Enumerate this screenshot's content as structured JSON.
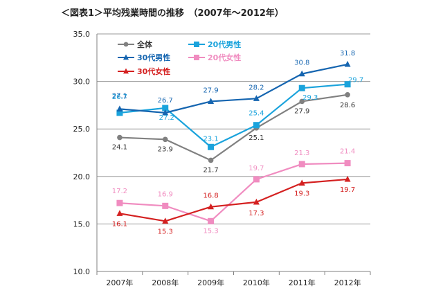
{
  "chart_data": {
    "type": "line",
    "title": "＜図表1＞平均残業時間の推移　（2007年～2012年）",
    "categories": [
      "2007年",
      "2008年",
      "2009年",
      "2010年",
      "2011年",
      "2012年"
    ],
    "ylim": [
      10.0,
      35.0
    ],
    "yticks": [
      "10.0",
      "15.0",
      "20.0",
      "25.0",
      "30.0",
      "35.0"
    ],
    "grid": true,
    "legend_position": "top-left",
    "series": [
      {
        "id": "all",
        "name": "全体",
        "color": "#808080",
        "marker": "circle",
        "values": [
          24.1,
          23.9,
          21.7,
          25.1,
          27.9,
          28.6
        ],
        "labels": [
          "24.1",
          "23.9",
          "21.7",
          "25.1",
          "27.9",
          "28.6"
        ]
      },
      {
        "id": "m20",
        "name": "20代男性",
        "color": "#1aa3dc",
        "marker": "square",
        "values": [
          26.7,
          27.2,
          23.1,
          25.4,
          29.3,
          29.7
        ],
        "labels": [
          "26.7",
          "27.2",
          "23.1",
          "25.4",
          "29.3",
          "29.7"
        ]
      },
      {
        "id": "m30",
        "name": "30代男性",
        "color": "#1565b0",
        "marker": "triangle",
        "values": [
          27.1,
          26.7,
          27.9,
          28.2,
          30.8,
          31.8
        ],
        "labels": [
          "27.1",
          "26.7",
          "27.9",
          "28.2",
          "30.8",
          "31.8"
        ]
      },
      {
        "id": "f20",
        "name": "20代女性",
        "color": "#f08cc0",
        "marker": "square",
        "values": [
          17.2,
          16.9,
          15.3,
          19.7,
          21.3,
          21.4
        ],
        "labels": [
          "17.2",
          "16.9",
          "15.3",
          "19.7",
          "21.3",
          "21.4"
        ]
      },
      {
        "id": "f30",
        "name": "30代女性",
        "color": "#d42020",
        "marker": "triangle",
        "values": [
          16.1,
          15.3,
          16.8,
          17.3,
          19.3,
          19.7
        ],
        "labels": [
          "16.1",
          "15.3",
          "16.8",
          "17.3",
          "19.3",
          "19.7"
        ]
      }
    ]
  }
}
